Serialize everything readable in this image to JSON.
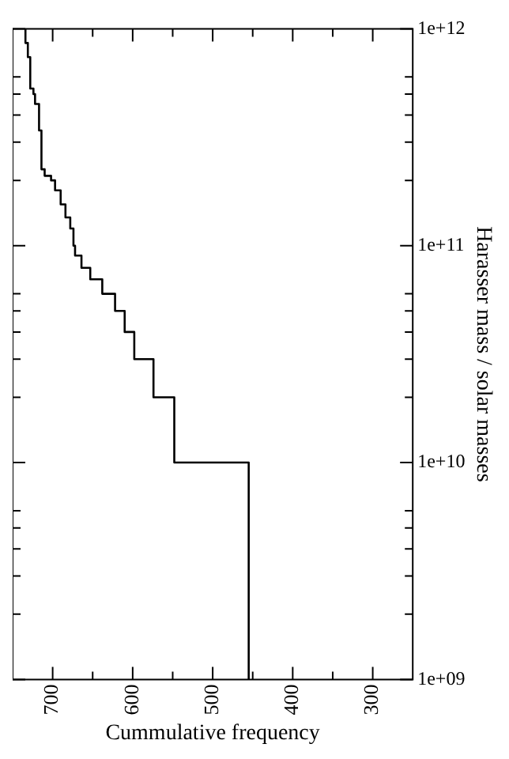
{
  "chart_data": {
    "type": "step",
    "xlabel": "Cummulative frequency",
    "ylabel": "Harasser mass / solar masses",
    "x": [
      455,
      548,
      574,
      598,
      610,
      622,
      638,
      653,
      664,
      672,
      674,
      678,
      684,
      690,
      697,
      702,
      710,
      714,
      717,
      722,
      724,
      728,
      731,
      734,
      734
    ],
    "values": [
      1000000000.0,
      10000000000.0,
      20000000000.0,
      30000000000.0,
      40000000000.0,
      50000000000.0,
      60000000000.0,
      70000000000.0,
      79000000000.0,
      90000000000.0,
      100000000000.0,
      120000000000.0,
      135000000000.0,
      155000000000.0,
      180000000000.0,
      200000000000.0,
      210000000000.0,
      225000000000.0,
      340000000000.0,
      450000000000.0,
      500000000000.0,
      530000000000.0,
      740000000000.0,
      860000000000.0,
      1000000000000.0
    ],
    "color": "#000000",
    "log": "y",
    "grid": false,
    "legend": false,
    "marker": "none",
    "line_style": "solid",
    "xlim": [
      750,
      250
    ],
    "xticks": [
      700,
      {
        "value": 650,
        "label": null
      },
      600,
      {
        "value": 550,
        "label": null
      },
      500,
      {
        "value": 450,
        "label": null
      },
      400,
      {
        "value": 350,
        "label": null
      },
      300
    ],
    "ylim": [
      1000000000.0,
      1000000000000.0
    ],
    "yticks": [
      {
        "value": 1000000000.0,
        "label": "1e+09"
      },
      {
        "value": 2000000000.0,
        "label": null
      },
      {
        "value": 3000000000.0,
        "label": null
      },
      {
        "value": 4000000000.0,
        "label": null
      },
      {
        "value": 5000000000.0,
        "label": null
      },
      {
        "value": 6000000000.0,
        "label": null
      },
      {
        "value": 10000000000.0,
        "label": "1e+10"
      },
      {
        "value": 20000000000.0,
        "label": null
      },
      {
        "value": 30000000000.0,
        "label": null
      },
      {
        "value": 40000000000.0,
        "label": null
      },
      {
        "value": 50000000000.0,
        "label": null
      },
      {
        "value": 60000000000.0,
        "label": null
      },
      {
        "value": 100000000000.0,
        "label": "1e+11"
      },
      {
        "value": 200000000000.0,
        "label": null
      },
      {
        "value": 300000000000.0,
        "label": null
      },
      {
        "value": 400000000000.0,
        "label": null
      },
      {
        "value": 500000000000.0,
        "label": null
      },
      {
        "value": 600000000000.0,
        "label": null
      },
      {
        "value": 1000000000000.0,
        "label": "1e+12"
      }
    ]
  }
}
